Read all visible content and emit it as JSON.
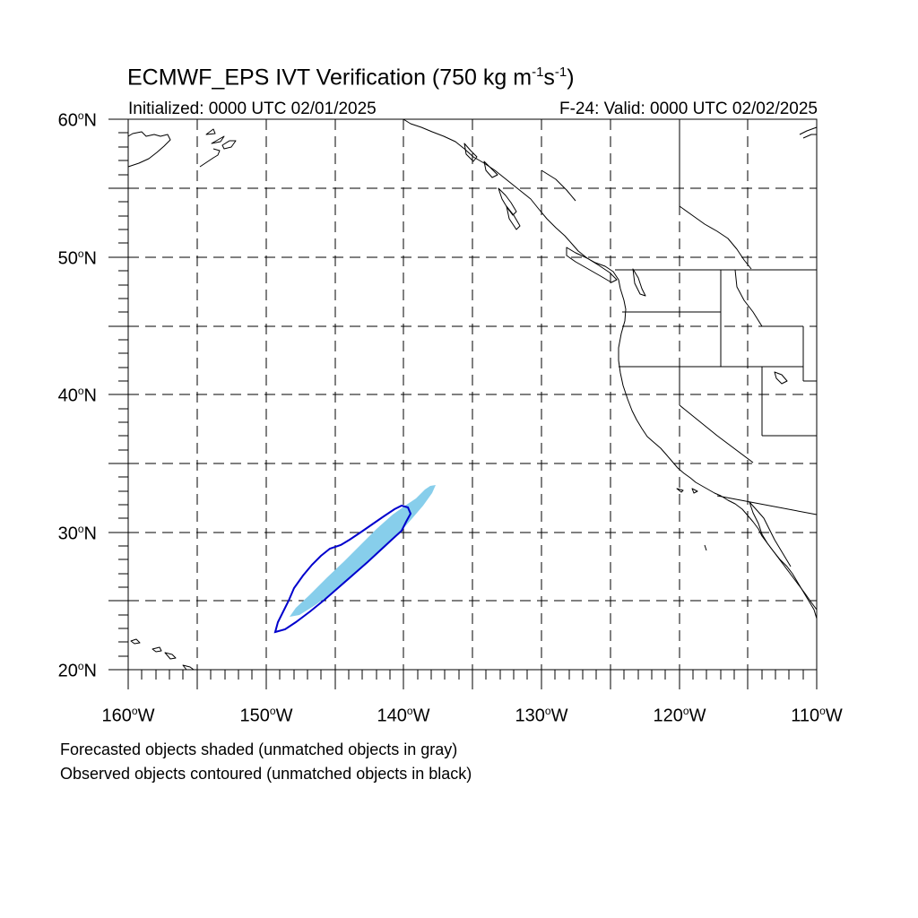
{
  "title": {
    "prefix": "ECMWF_EPS IVT Verification (750 kg m",
    "exp1": "-1",
    "mid": "s",
    "exp2": "-1",
    "suffix": ")"
  },
  "subtitle_left": "Initialized: 0000 UTC 02/01/2025",
  "subtitle_right": "F-24: Valid: 0000 UTC 02/02/2025",
  "lat_labels": [
    {
      "value": "60",
      "suffix": "N"
    },
    {
      "value": "50",
      "suffix": "N"
    },
    {
      "value": "40",
      "suffix": "N"
    },
    {
      "value": "30",
      "suffix": "N"
    },
    {
      "value": "20",
      "suffix": "N"
    }
  ],
  "lon_labels": [
    {
      "value": "160",
      "suffix": "W"
    },
    {
      "value": "150",
      "suffix": "W"
    },
    {
      "value": "140",
      "suffix": "W"
    },
    {
      "value": "130",
      "suffix": "W"
    },
    {
      "value": "120",
      "suffix": "W"
    },
    {
      "value": "110",
      "suffix": "W"
    }
  ],
  "degree_symbol": "o",
  "footer_line1": "Forecasted objects shaded (unmatched objects in gray)",
  "footer_line2": "Observed objects contoured (unmatched objects in black)",
  "colors": {
    "forecast_fill": "#87ceeb",
    "observed_contour": "#0000cd",
    "coastline": "#000000",
    "grid": "#000000"
  }
}
